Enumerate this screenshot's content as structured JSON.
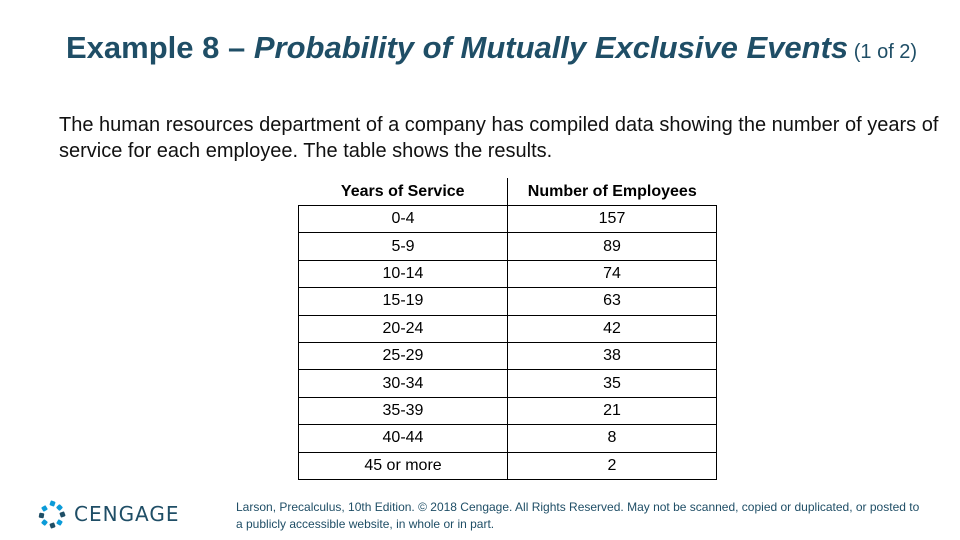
{
  "title": {
    "prefix": "Example 8 – ",
    "emphasis": "Probability of Mutually Exclusive Events",
    "suffix": " (1 of 2)"
  },
  "intro": "The human resources department of a company has compiled data showing the number of years of service for each employee. The table shows the results.",
  "table": {
    "headers": [
      "Years of Service",
      "Number of Employees"
    ],
    "rows": [
      [
        "0-4",
        "157"
      ],
      [
        "5-9",
        "89"
      ],
      [
        "10-14",
        "74"
      ],
      [
        "15-19",
        "63"
      ],
      [
        "20-24",
        "42"
      ],
      [
        "25-29",
        "38"
      ],
      [
        "30-34",
        "35"
      ],
      [
        "35-39",
        "21"
      ],
      [
        "40-44",
        "8"
      ],
      [
        "45 or more",
        "2"
      ]
    ]
  },
  "logo": {
    "text": "CENGAGE",
    "icon": "cengage-logo-icon",
    "colors": [
      "#0b9bd8",
      "#1f4e66"
    ]
  },
  "footer": "Larson, Precalculus, 10th Edition. © 2018 Cengage. All Rights Reserved. May not be scanned, copied or duplicated, or posted to a publicly accessible website, in whole or in part."
}
